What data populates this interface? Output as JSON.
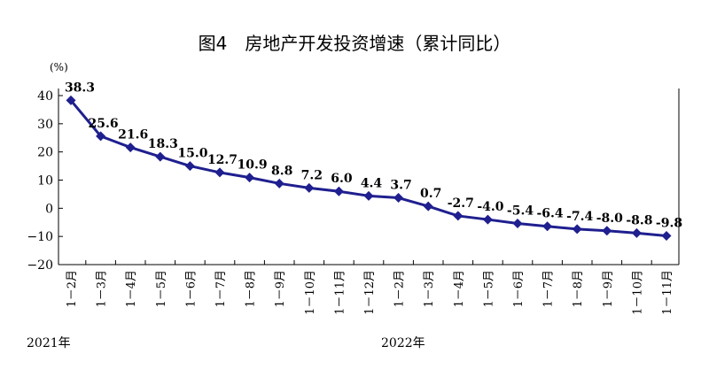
{
  "chart_data": {
    "type": "line",
    "title": "图4　房地产开发投资增速（累计同比）",
    "ylabel": "(%)",
    "ylim": [
      -20,
      40
    ],
    "yticks": [
      "40",
      "30",
      "20",
      "10",
      "0",
      "−10",
      "−20"
    ],
    "categories": [
      "1－2月",
      "1－3月",
      "1－4月",
      "1－5月",
      "1－6月",
      "1－7月",
      "1－8月",
      "1－9月",
      "1－10月",
      "1－11月",
      "1－12月",
      "1－2月",
      "1－3月",
      "1－4月",
      "1－5月",
      "1－6月",
      "1－7月",
      "1－8月",
      "1－9月",
      "1－10月",
      "1－11月"
    ],
    "year_labels": [
      "2021年",
      "2022年"
    ],
    "values": [
      38.3,
      25.6,
      21.6,
      18.3,
      15.0,
      12.7,
      10.9,
      8.8,
      7.2,
      6.0,
      4.4,
      3.7,
      0.7,
      -2.7,
      -4.0,
      -5.4,
      -6.4,
      -7.4,
      -8.0,
      -8.8,
      -9.8
    ],
    "value_labels": [
      "38.3",
      "25.6",
      "21.6",
      "18.3",
      "15.0",
      "12.7",
      "10.9",
      "8.8",
      "7.2",
      "6.0",
      "4.4",
      "3.7",
      "0.7",
      "-2.7",
      "-4.0",
      "-5.4",
      "-6.4",
      "-7.4",
      "-8.0",
      "-8.8",
      "-9.8"
    ],
    "line_color": "#1f1f8f",
    "grid": false
  }
}
